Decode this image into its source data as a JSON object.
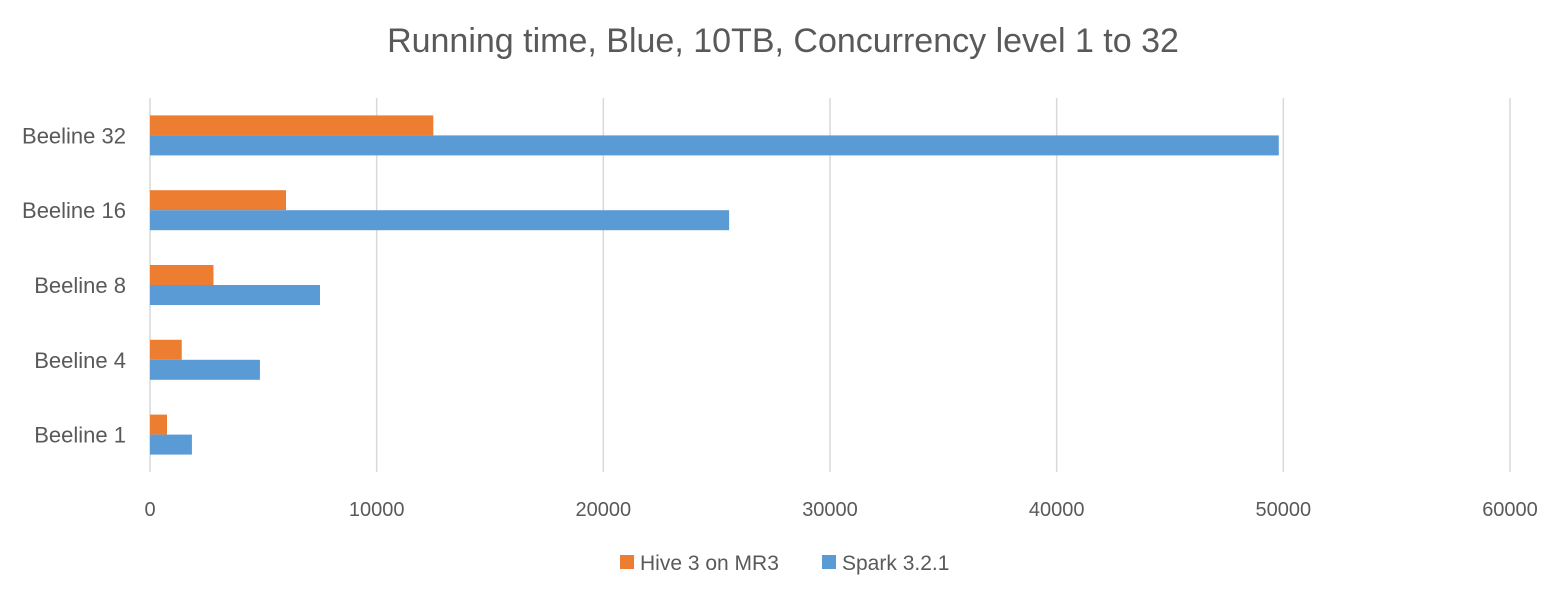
{
  "chart_data": {
    "type": "bar",
    "orientation": "horizontal",
    "title": "Running time, Blue, 10TB, Concurrency level 1 to 32",
    "categories": [
      "Beeline 1",
      "Beeline 4",
      "Beeline 8",
      "Beeline 16",
      "Beeline 32"
    ],
    "series": [
      {
        "name": "Hive 3 on MR3",
        "color": "#ED7D31",
        "values": [
          750,
          1400,
          2800,
          6000,
          12500
        ]
      },
      {
        "name": "Spark 3.2.1",
        "color": "#5B9BD5",
        "values": [
          1850,
          4850,
          7500,
          25550,
          49800
        ]
      }
    ],
    "xlim": [
      0,
      60000
    ],
    "xticks": [
      "0",
      "10000",
      "20000",
      "30000",
      "40000",
      "50000",
      "60000"
    ],
    "xlabel": "",
    "ylabel": "",
    "grid": "vertical",
    "legend_position": "bottom"
  }
}
